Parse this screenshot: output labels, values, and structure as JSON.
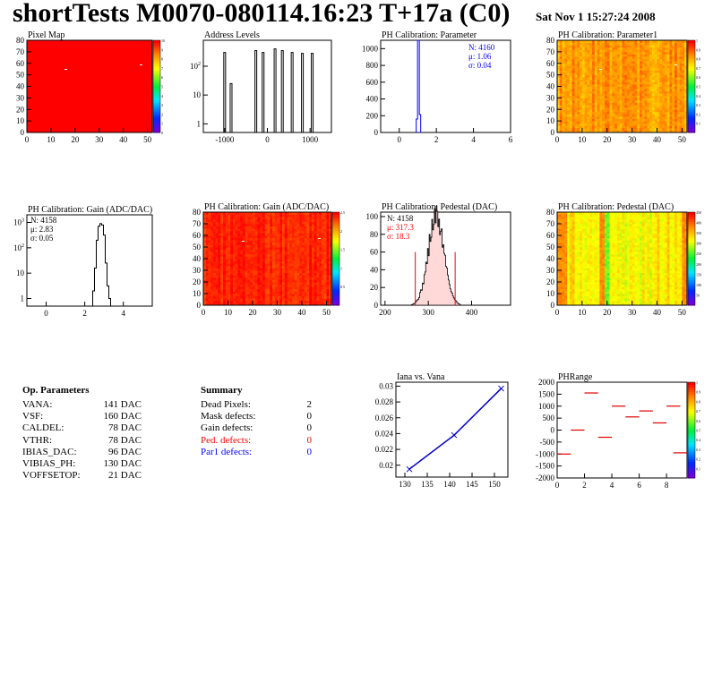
{
  "header": {
    "title": "shortTests M0070-080114.16:23 T+17a (C0)",
    "date": "Sat Nov  1 15:27:24 2008"
  },
  "chart_data": [
    {
      "id": "pixel-map",
      "type": "heatmap",
      "title": "Pixel Map",
      "xlim": [
        0,
        52
      ],
      "ylim": [
        0,
        80
      ],
      "xticks": [
        "0",
        "10",
        "20",
        "30",
        "40",
        "50"
      ],
      "yticks": [
        "0",
        "10",
        "20",
        "30",
        "40",
        "50",
        "60",
        "70",
        "80"
      ],
      "zticks": [
        "0",
        "1",
        "2",
        "3",
        "4",
        "5",
        "6",
        "7",
        "8",
        "9",
        "10"
      ],
      "dominant": "#ff0000"
    },
    {
      "id": "address-levels",
      "type": "bar",
      "title": "Address Levels",
      "xlim": [
        -1500,
        1500
      ],
      "ylog": true,
      "xticks": [
        "-1000",
        "0",
        "1000"
      ],
      "yticks": [
        "1",
        "10",
        "10^2"
      ],
      "peaks": [
        [
          -1000,
          300
        ],
        [
          -850,
          25
        ],
        [
          -270,
          350
        ],
        [
          -100,
          300
        ],
        [
          180,
          400
        ],
        [
          350,
          350
        ],
        [
          580,
          300
        ],
        [
          820,
          280
        ],
        [
          1050,
          280
        ]
      ]
    },
    {
      "id": "ph-cal-param",
      "type": "bar",
      "title": "PH Calibration: Parameter",
      "xlim": [
        -1,
        6
      ],
      "ylim": [
        0,
        1100
      ],
      "xticks": [
        "0",
        "2",
        "4",
        "6"
      ],
      "yticks": [
        "0",
        "200",
        "400",
        "600",
        "800",
        "1000"
      ],
      "stats": [
        "N: 4160",
        "μ: 1.06",
        "σ: 0.04"
      ],
      "peak_x": 1.06,
      "peak_y": 1100
    },
    {
      "id": "ph-cal-param1",
      "type": "heatmap",
      "title": "PH Calibration: Parameter1",
      "xlim": [
        0,
        52
      ],
      "ylim": [
        0,
        80
      ],
      "xticks": [
        "0",
        "10",
        "20",
        "30",
        "40",
        "50"
      ],
      "yticks": [
        "0",
        "10",
        "20",
        "30",
        "40",
        "50",
        "60",
        "70",
        "80"
      ],
      "zticks": [
        "0.1",
        "0.2",
        "0.3",
        "0.4",
        "0.5",
        "0.6",
        "0.7",
        "0.8",
        "0.9",
        "1"
      ]
    },
    {
      "id": "ph-cal-gain",
      "type": "bar",
      "title": "PH Calibration: Gain (ADC/DAC)",
      "xlim": [
        -1,
        5.5
      ],
      "ylog": true,
      "xticks": [
        "0",
        "2",
        "4"
      ],
      "yticks": [
        "1",
        "10",
        "10^2",
        "10^3"
      ],
      "stats": [
        "N: 4158",
        "μ: 2.83",
        "σ: 0.05"
      ],
      "peak_x": 2.83,
      "peak_y": 900
    },
    {
      "id": "ph-cal-gain-map",
      "type": "heatmap",
      "title": "PH Calibration: Gain (ADC/DAC)",
      "xlim": [
        0,
        52
      ],
      "ylim": [
        0,
        80
      ],
      "xticks": [
        "0",
        "10",
        "20",
        "30",
        "40",
        "50"
      ],
      "yticks": [
        "0",
        "10",
        "20",
        "30",
        "40",
        "50",
        "60",
        "70",
        "80"
      ],
      "zticks": [
        "0.5",
        "1",
        "1.5",
        "2",
        "2.5"
      ]
    },
    {
      "id": "ph-cal-pedestal",
      "type": "bar",
      "title": "PH Calibration: Pedestal (DAC)",
      "xlim": [
        190,
        490
      ],
      "ylim": [
        0,
        105
      ],
      "xticks": [
        "200",
        "300",
        "400"
      ],
      "yticks": [
        "0",
        "20",
        "40",
        "60",
        "80",
        "100"
      ],
      "stats": [
        "N: 4158",
        "μ: 317.3",
        "σ: 18.3"
      ],
      "mean": 317.3,
      "sigma": 18.3,
      "peak_y": 100,
      "cut_lines": [
        270,
        362
      ]
    },
    {
      "id": "ph-cal-pedestal-map",
      "type": "heatmap",
      "title": "PH Calibration: Pedestal (DAC)",
      "xlim": [
        0,
        52
      ],
      "ylim": [
        0,
        80
      ],
      "xticks": [
        "0",
        "10",
        "20",
        "30",
        "40",
        "50"
      ],
      "yticks": [
        "0",
        "10",
        "20",
        "30",
        "40",
        "50",
        "60",
        "70",
        "80"
      ],
      "zticks": [
        "50",
        "100",
        "150",
        "200",
        "250",
        "300",
        "350",
        "400",
        "450"
      ]
    },
    {
      "id": "iana-vs-vana",
      "type": "line",
      "title": "Iana vs. Vana",
      "xlim": [
        128,
        153
      ],
      "ylim": [
        0.0185,
        0.0305
      ],
      "xticks": [
        "130",
        "135",
        "140",
        "145",
        "150"
      ],
      "yticks": [
        "0.02",
        "0.022",
        "0.024",
        "0.026",
        "0.028",
        "0.03"
      ],
      "x": [
        131,
        141,
        151.5
      ],
      "y": [
        0.0195,
        0.0238,
        0.0297
      ]
    },
    {
      "id": "ph-range",
      "type": "scatter",
      "title": "PHRange",
      "xlim": [
        0,
        9.5
      ],
      "ylim": [
        -2000,
        2000
      ],
      "xticks": [
        "0",
        "2",
        "4",
        "6",
        "8"
      ],
      "yticks": [
        "2000",
        "1500",
        "1000",
        "500",
        "0",
        "-500",
        "-1000",
        "-1500",
        "-2000"
      ],
      "zticks": [
        "0.1",
        "0.2",
        "0.3",
        "0.4",
        "0.5",
        "0.6",
        "0.7",
        "0.8",
        "0.9",
        "1"
      ],
      "segments": [
        [
          0,
          -1000
        ],
        [
          1,
          0
        ],
        [
          2,
          1550
        ],
        [
          3,
          -300
        ],
        [
          4,
          1000
        ],
        [
          5,
          550
        ],
        [
          6,
          800
        ],
        [
          7,
          300
        ],
        [
          8,
          1000
        ],
        [
          8.5,
          -950
        ]
      ]
    }
  ],
  "op_params": {
    "heading": "Op. Parameters",
    "rows": [
      {
        "name": "VANA:",
        "value": "141 DAC"
      },
      {
        "name": "VSF:",
        "value": "160 DAC"
      },
      {
        "name": "CALDEL:",
        "value": "78 DAC"
      },
      {
        "name": "VTHR:",
        "value": "78 DAC"
      },
      {
        "name": "IBIAS_DAC:",
        "value": "96 DAC"
      },
      {
        "name": "VIBIAS_PH:",
        "value": "130 DAC"
      },
      {
        "name": "VOFFSETOP:",
        "value": "21 DAC"
      }
    ]
  },
  "summary": {
    "heading": "Summary",
    "rows": [
      {
        "name": "Dead Pixels:",
        "value": "2",
        "color": "#000000"
      },
      {
        "name": "Mask defects:",
        "value": "0",
        "color": "#000000"
      },
      {
        "name": "Gain defects:",
        "value": "0",
        "color": "#000000"
      },
      {
        "name": "Ped. defects:",
        "value": "0",
        "color": "#ff0000"
      },
      {
        "name": "Par1 defects:",
        "value": "0",
        "color": "#0000ff"
      }
    ]
  }
}
